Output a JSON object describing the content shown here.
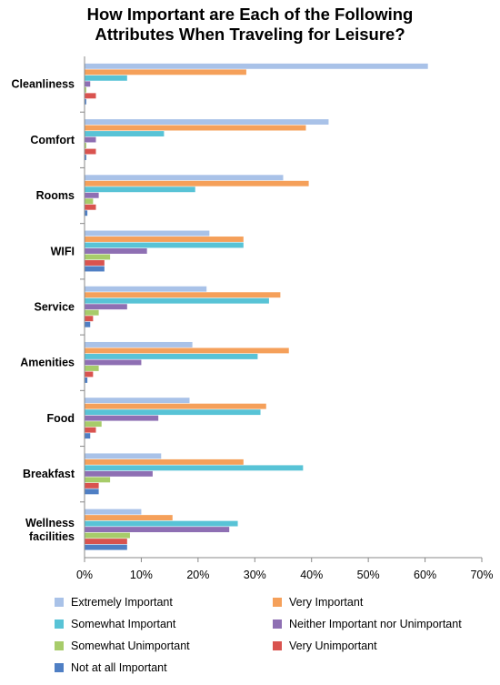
{
  "title": {
    "line1": "How Important are Each of the Following",
    "line2": "Attributes When Traveling for Leisure?"
  },
  "colors": {
    "Extremely Important": "#a9c2e8",
    "Very Important": "#f5a05a",
    "Somewhat Important": "#58c3d6",
    "Neither Important nor Unimportant": "#8e6fb3",
    "Somewhat Unimportant": "#a7cc6a",
    "Very Unimportant": "#d9534f",
    "Not at all Important": "#4f7fc4"
  },
  "chart_data": {
    "type": "bar",
    "orientation": "horizontal",
    "title": "How Important are Each of the Following Attributes When Traveling for Leisure?",
    "categories": [
      "Cleanliness",
      "Comfort",
      "Rooms",
      "WIFI",
      "Service",
      "Amenities",
      "Food",
      "Breakfast",
      "Wellness facilities"
    ],
    "category_display": [
      [
        "Cleanliness"
      ],
      [
        "Comfort"
      ],
      [
        "Rooms"
      ],
      [
        "WIFI"
      ],
      [
        "Service"
      ],
      [
        "Amenities"
      ],
      [
        "Food"
      ],
      [
        "Breakfast"
      ],
      [
        "Wellness",
        "facilities"
      ]
    ],
    "series": [
      {
        "name": "Extremely Important",
        "values": [
          60.5,
          43,
          35,
          22,
          21.5,
          19,
          18.5,
          13.5,
          10
        ]
      },
      {
        "name": "Very Important",
        "values": [
          28.5,
          39,
          39.5,
          28,
          34.5,
          36,
          32,
          28,
          15.5
        ]
      },
      {
        "name": "Somewhat Important",
        "values": [
          7.5,
          14,
          19.5,
          28,
          32.5,
          30.5,
          31,
          38.5,
          27
        ]
      },
      {
        "name": "Neither Important nor Unimportant",
        "values": [
          1,
          2,
          2.5,
          11,
          7.5,
          10,
          13,
          12,
          25.5
        ]
      },
      {
        "name": "Somewhat Unimportant",
        "values": [
          0.3,
          0.3,
          1.5,
          4.5,
          2.5,
          2.5,
          3,
          4.5,
          8
        ]
      },
      {
        "name": "Very Unimportant",
        "values": [
          2,
          2,
          2,
          3.5,
          1.5,
          1.5,
          2,
          2.5,
          7.5
        ]
      },
      {
        "name": "Not at all Important",
        "values": [
          0.3,
          0.3,
          0.5,
          3.5,
          1,
          0.5,
          1,
          2.5,
          7.5
        ]
      }
    ],
    "xlim": [
      0,
      70
    ],
    "x_ticks": [
      "0%",
      "10%",
      "20%",
      "30%",
      "40%",
      "50%",
      "60%",
      "70%"
    ],
    "legend_position": "bottom",
    "grid": false
  },
  "legend": [
    "Extremely Important",
    "Very Important",
    "Somewhat Important",
    "Neither Important nor Unimportant",
    "Somewhat Unimportant",
    "Very Unimportant",
    "Not at all Important"
  ]
}
